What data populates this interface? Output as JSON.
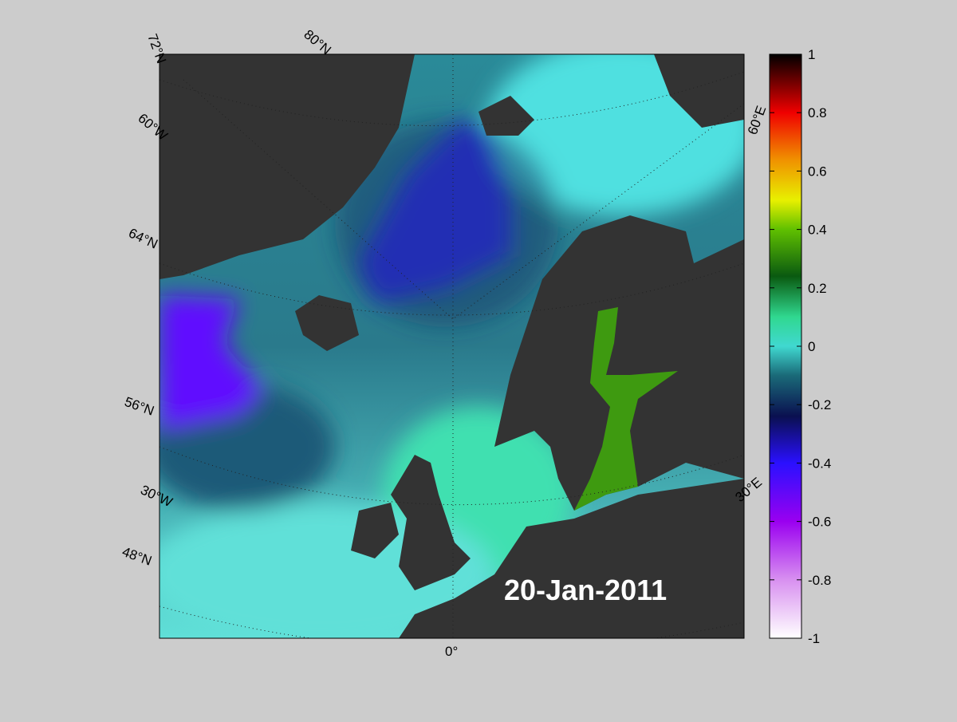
{
  "map": {
    "date": "20-Jan-2011",
    "graticule_labels": [
      "72°N",
      "80°N",
      "60°W",
      "64°N",
      "56°N",
      "30°W",
      "48°N",
      "0°",
      "30°E",
      "60°E"
    ]
  },
  "colorbar": {
    "lim": [
      -1,
      1
    ],
    "ticks": [
      -1,
      -0.8,
      -0.6,
      -0.4,
      -0.2,
      0,
      0.2,
      0.4,
      0.6,
      0.8,
      1
    ]
  }
}
